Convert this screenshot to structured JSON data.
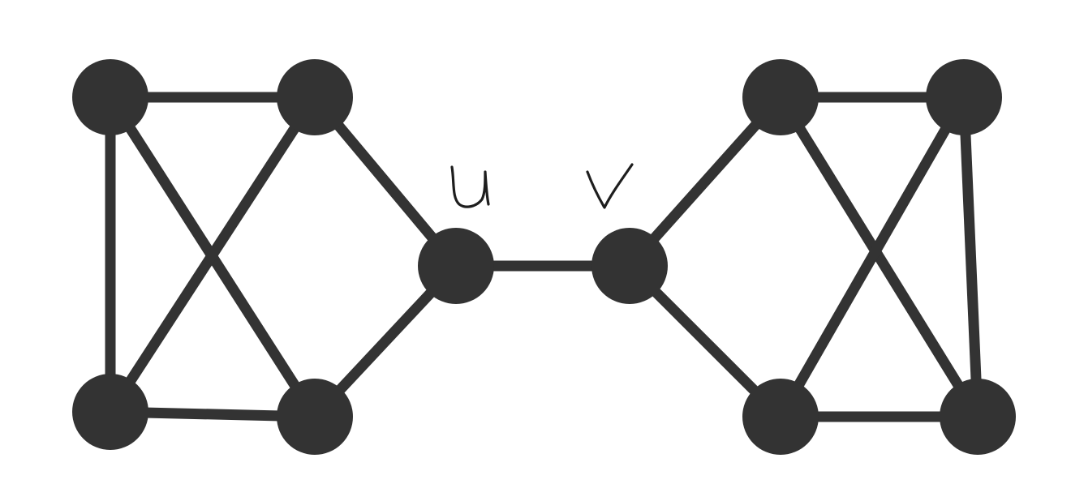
{
  "graph": {
    "nodes": [
      {
        "id": "a1",
        "label": ""
      },
      {
        "id": "a2",
        "label": ""
      },
      {
        "id": "a3",
        "label": ""
      },
      {
        "id": "a4",
        "label": ""
      },
      {
        "id": "u",
        "label": "u"
      },
      {
        "id": "v",
        "label": "v"
      },
      {
        "id": "b1",
        "label": ""
      },
      {
        "id": "b2",
        "label": ""
      },
      {
        "id": "b3",
        "label": ""
      },
      {
        "id": "b4",
        "label": ""
      }
    ],
    "edges": [
      [
        "a1",
        "a2"
      ],
      [
        "a1",
        "a3"
      ],
      [
        "a1",
        "a4"
      ],
      [
        "a2",
        "a3"
      ],
      [
        "a2",
        "u"
      ],
      [
        "a3",
        "a4"
      ],
      [
        "a4",
        "u"
      ],
      [
        "u",
        "v"
      ],
      [
        "v",
        "b1"
      ],
      [
        "v",
        "b3"
      ],
      [
        "b1",
        "b2"
      ],
      [
        "b1",
        "b4"
      ],
      [
        "b2",
        "b3"
      ],
      [
        "b2",
        "b4"
      ],
      [
        "b3",
        "b4"
      ]
    ]
  },
  "labels": {
    "u": "u",
    "v": "v"
  },
  "colors": {
    "node": "#333333",
    "edge": "#333333",
    "label_ink": "#1e1e1e",
    "background": "#ffffff"
  }
}
